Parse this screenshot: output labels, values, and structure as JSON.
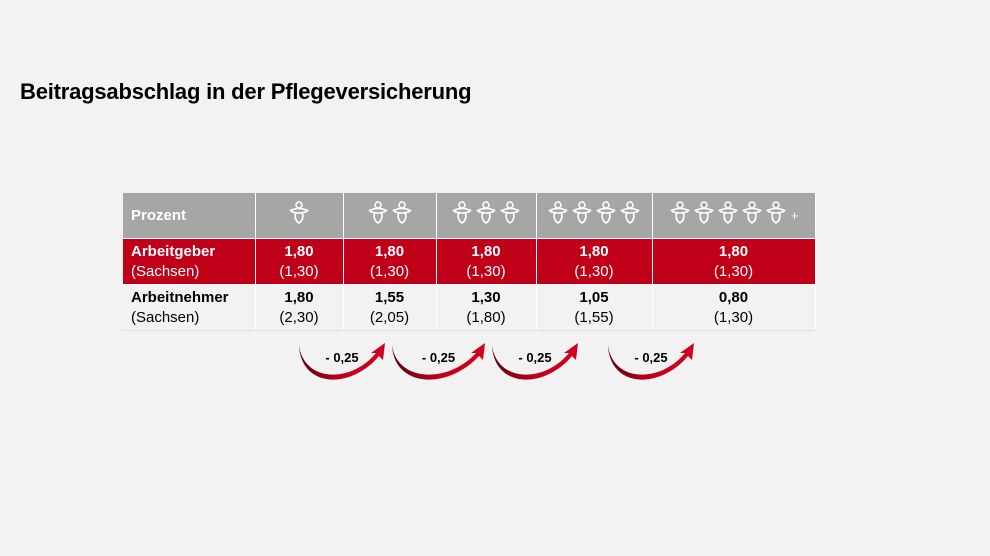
{
  "title": "Beitragsabschlag in der Pflegeversicherung",
  "table": {
    "header_label": "Prozent",
    "columns": [
      {
        "children": 1,
        "plus": ""
      },
      {
        "children": 2,
        "plus": ""
      },
      {
        "children": 3,
        "plus": ""
      },
      {
        "children": 4,
        "plus": ""
      },
      {
        "children": 5,
        "plus": "+"
      }
    ],
    "rows": [
      {
        "label": "Arbeitgeber",
        "sublabel": "(Sachsen)",
        "values": [
          "1,80",
          "1,80",
          "1,80",
          "1,80",
          "1,80"
        ],
        "subvalues": [
          "(1,30)",
          "(1,30)",
          "(1,30)",
          "(1,30)",
          "(1,30)"
        ]
      },
      {
        "label": "Arbeitnehmer",
        "sublabel": "(Sachsen)",
        "values": [
          "1,80",
          "1,55",
          "1,30",
          "1,05",
          "0,80"
        ],
        "subvalues": [
          "(2,30)",
          "(2,05)",
          "(1,80)",
          "(1,55)",
          "(1,30)"
        ]
      }
    ]
  },
  "reductions": [
    "- 0,25",
    "- 0,25",
    "- 0,25",
    "- 0,25"
  ],
  "colors": {
    "header_gray": "#a6a6a6",
    "employer_red": "#c00018",
    "arrow_red": "#b0001a",
    "background": "#f2f2f2"
  },
  "icons": {
    "child": "pacifier-icon"
  }
}
